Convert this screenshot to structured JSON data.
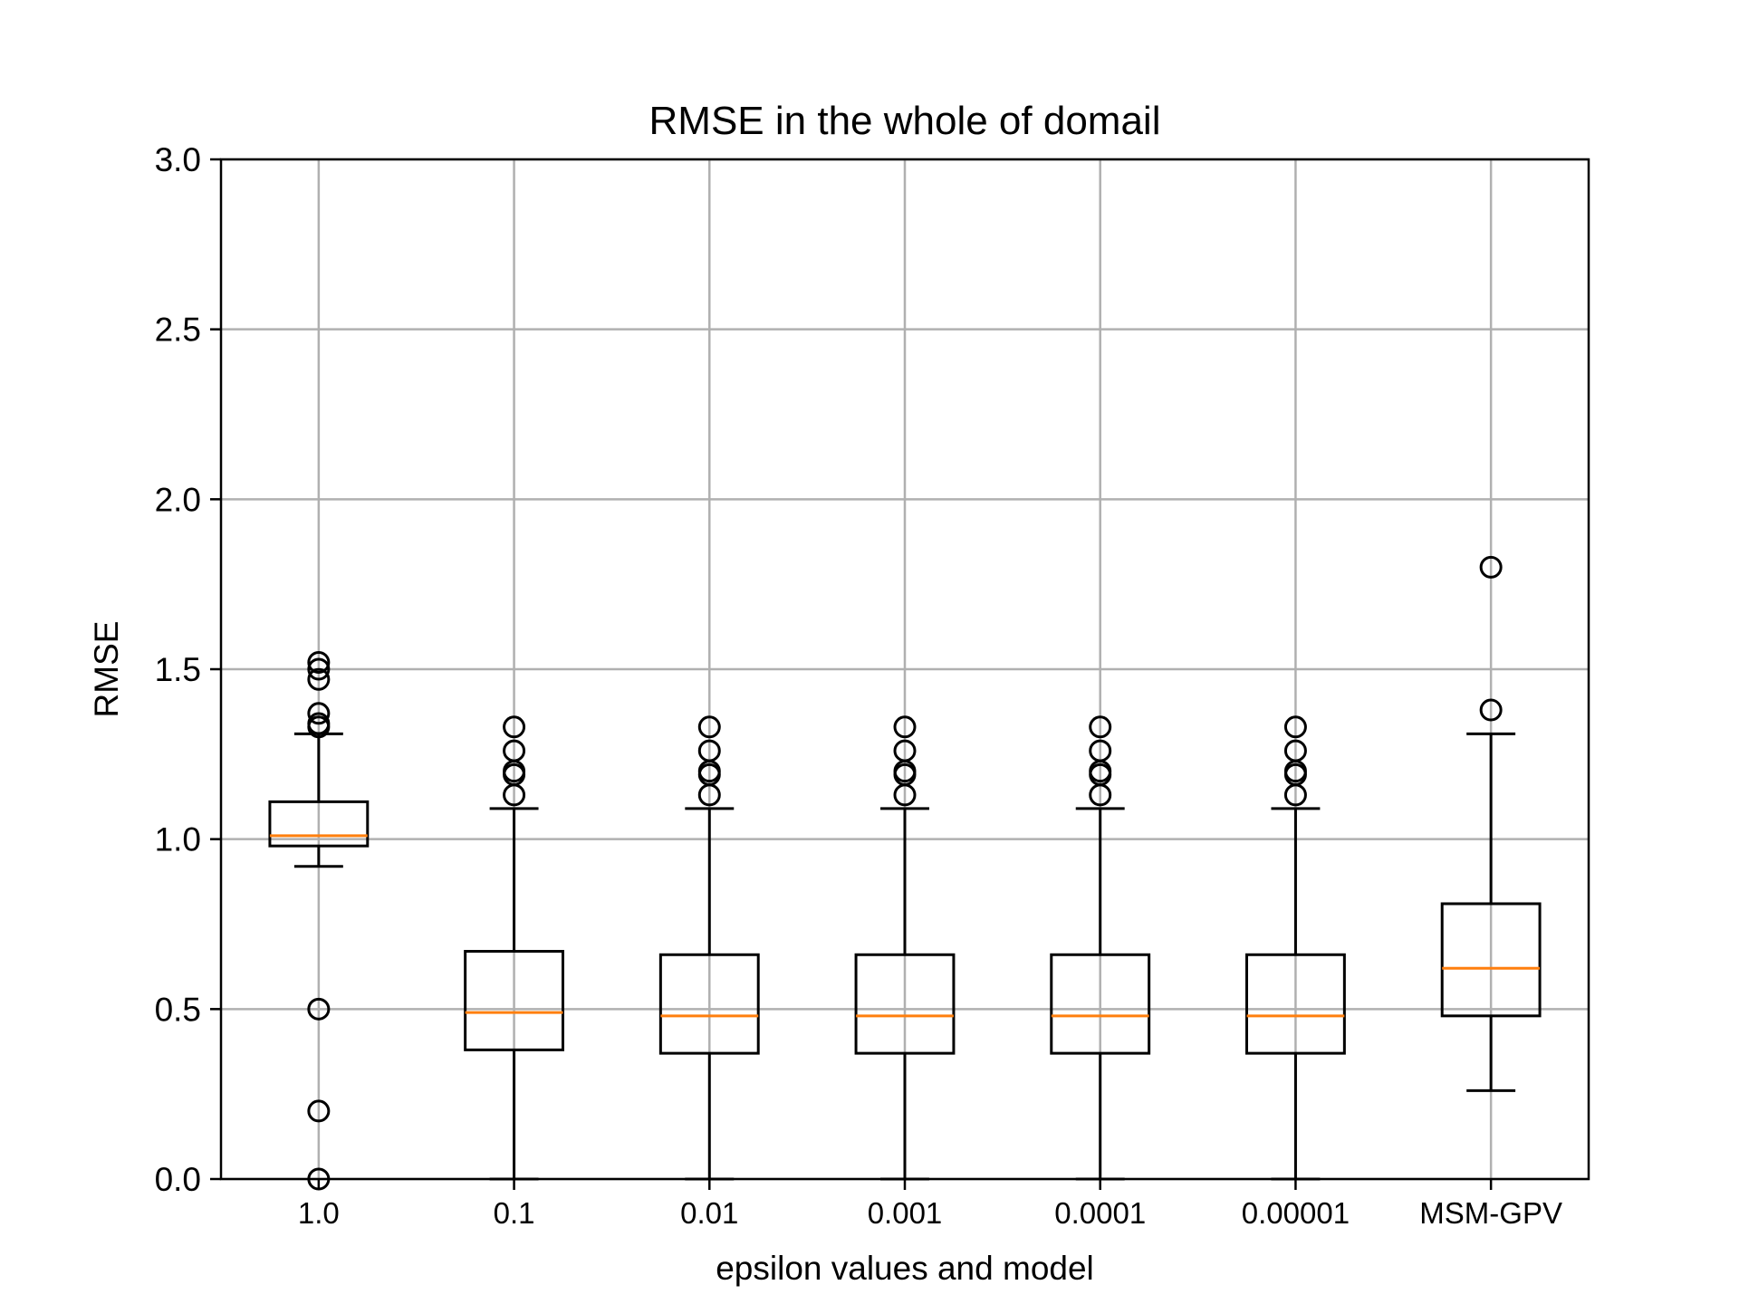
{
  "chart_data": {
    "type": "box",
    "title": "RMSE in the whole of domail",
    "xlabel": "epsilon values and model",
    "ylabel": "RMSE",
    "ylim": [
      0.0,
      3.0
    ],
    "yticks": [
      "0.0",
      "0.5",
      "1.0",
      "1.5",
      "2.0",
      "2.5",
      "3.0"
    ],
    "grid": true,
    "median_color": "#ff7f0e",
    "categories": [
      "1.0",
      "0.1",
      "0.01",
      "0.001",
      "0.0001",
      "0.00001",
      "MSM-GPV"
    ],
    "boxes": [
      {
        "whisker_low": 0.92,
        "q1": 0.98,
        "median": 1.01,
        "q3": 1.11,
        "whisker_high": 1.31,
        "fliers": [
          1.52,
          1.5,
          1.47,
          1.37,
          1.34,
          1.33,
          0.5,
          0.2,
          0.0
        ]
      },
      {
        "whisker_low": 0.0,
        "q1": 0.38,
        "median": 0.49,
        "q3": 0.67,
        "whisker_high": 1.09,
        "fliers": [
          1.33,
          1.26,
          1.2,
          1.19,
          1.13
        ]
      },
      {
        "whisker_low": 0.0,
        "q1": 0.37,
        "median": 0.48,
        "q3": 0.66,
        "whisker_high": 1.09,
        "fliers": [
          1.33,
          1.26,
          1.2,
          1.19,
          1.13
        ]
      },
      {
        "whisker_low": 0.0,
        "q1": 0.37,
        "median": 0.48,
        "q3": 0.66,
        "whisker_high": 1.09,
        "fliers": [
          1.33,
          1.26,
          1.2,
          1.19,
          1.13
        ]
      },
      {
        "whisker_low": 0.0,
        "q1": 0.37,
        "median": 0.48,
        "q3": 0.66,
        "whisker_high": 1.09,
        "fliers": [
          1.33,
          1.26,
          1.2,
          1.19,
          1.13
        ]
      },
      {
        "whisker_low": 0.0,
        "q1": 0.37,
        "median": 0.48,
        "q3": 0.66,
        "whisker_high": 1.09,
        "fliers": [
          1.33,
          1.26,
          1.2,
          1.19,
          1.13
        ]
      },
      {
        "whisker_low": 0.26,
        "q1": 0.48,
        "median": 0.62,
        "q3": 0.81,
        "whisker_high": 1.31,
        "fliers": [
          1.8,
          1.38
        ]
      }
    ]
  }
}
